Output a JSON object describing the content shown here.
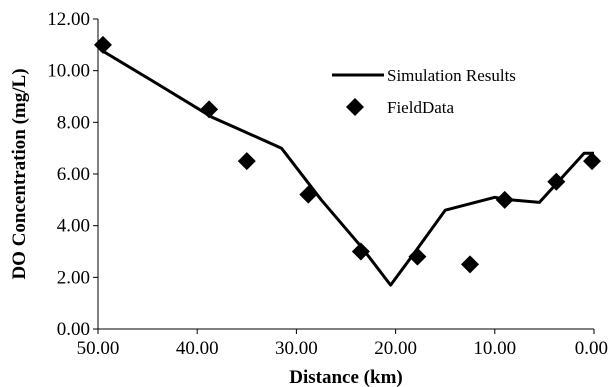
{
  "chart_data": {
    "type": "scatter",
    "title": "",
    "xlabel": "Distance (km)",
    "ylabel": "DO Concentration (mg/L)",
    "xlim": [
      50,
      0
    ],
    "ylim": [
      0,
      12
    ],
    "x_reversed": true,
    "x_ticks": [
      50,
      40,
      30,
      20,
      10,
      0
    ],
    "x_tick_labels": [
      "50.00",
      "40.00",
      "30.00",
      "20.00",
      "10.00",
      "0.00"
    ],
    "y_ticks": [
      0,
      2,
      4,
      6,
      8,
      10,
      12
    ],
    "y_tick_labels": [
      "0.00",
      "2.00",
      "4.00",
      "6.00",
      "8.00",
      "10.00",
      "12.00"
    ],
    "grid": false,
    "legend_position": "top-right",
    "series": [
      {
        "name": "Simulation Results",
        "kind": "line",
        "color": "#000000",
        "x": [
          49.7,
          44.5,
          38.5,
          31.5,
          27.5,
          23.5,
          20.5,
          18.0,
          15.0,
          10.0,
          8.5,
          5.5,
          1.0,
          0.0
        ],
        "y": [
          10.8,
          9.6,
          8.2,
          7.0,
          5.0,
          3.2,
          1.7,
          3.0,
          4.6,
          5.1,
          5.0,
          4.9,
          6.8,
          6.8
        ]
      },
      {
        "name": "FieldData",
        "kind": "scatter",
        "marker": "diamond",
        "color": "#000000",
        "x": [
          49.5,
          38.8,
          35.0,
          28.8,
          23.5,
          17.8,
          12.5,
          9.0,
          3.8,
          0.2
        ],
        "y": [
          11.0,
          8.5,
          6.5,
          5.2,
          3.0,
          2.8,
          2.5,
          5.0,
          5.7,
          6.5
        ]
      }
    ]
  }
}
